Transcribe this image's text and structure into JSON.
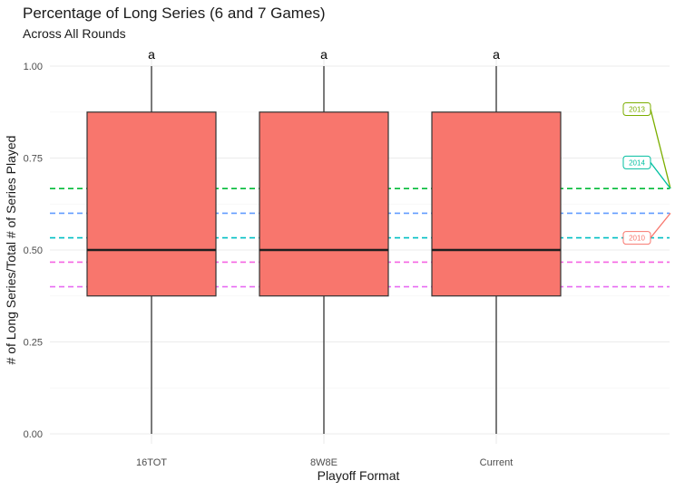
{
  "chart_data": {
    "type": "boxplot",
    "title": "Percentage of Long Series (6 and 7 Games)",
    "subtitle": "Across All Rounds",
    "xlabel": "Playoff Format",
    "ylabel": "# of Long Series/Total # of Series Played",
    "ylim": [
      0,
      1
    ],
    "y_ticks": [
      "0.00",
      "0.25",
      "0.50",
      "0.75",
      "1.00"
    ],
    "categories": [
      "16TOT",
      "8W8E",
      "Current"
    ],
    "boxes": [
      {
        "category": "16TOT",
        "min": 0.0,
        "q1": 0.375,
        "median": 0.5,
        "q3": 0.875,
        "max": 1.0,
        "label": "a"
      },
      {
        "category": "8W8E",
        "min": 0.0,
        "q1": 0.375,
        "median": 0.5,
        "q3": 0.875,
        "max": 1.0,
        "label": "a"
      },
      {
        "category": "Current",
        "min": 0.0,
        "q1": 0.375,
        "median": 0.5,
        "q3": 0.875,
        "max": 1.0,
        "label": "a"
      }
    ],
    "box_color": "#F8766D",
    "reference_lines": [
      {
        "value": 0.667,
        "color": "#00BA38"
      },
      {
        "value": 0.6,
        "color": "#619CFF"
      },
      {
        "value": 0.533,
        "color": "#00BFC4"
      },
      {
        "value": 0.467,
        "color": "#F564E3"
      },
      {
        "value": 0.4,
        "color": "#E76BF3"
      }
    ],
    "annotations": [
      {
        "label": "2013",
        "label_y": 0.883,
        "target_y": 0.667,
        "color": "#7CAE00"
      },
      {
        "label": "2014",
        "label_y": 0.738,
        "target_y": 0.667,
        "color": "#00BFA0"
      },
      {
        "label": "2010",
        "label_y": 0.533,
        "target_y": 0.6,
        "color": "#F8766D"
      }
    ],
    "grid": true
  }
}
